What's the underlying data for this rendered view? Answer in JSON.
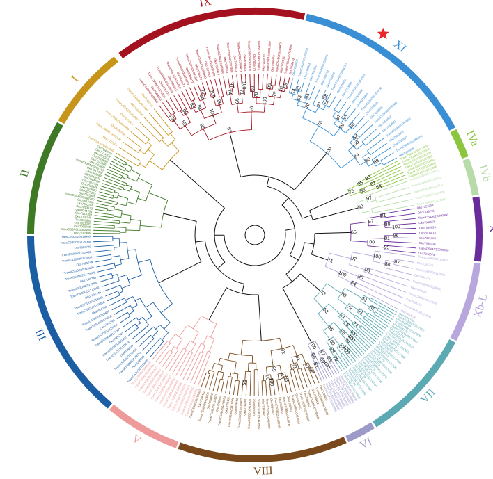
{
  "figure": {
    "marker_icon": "star-icon",
    "marker_color": "#e8282b"
  },
  "clades": [
    {
      "id": "IX",
      "label": "IX",
      "color": "#a3121e",
      "leaf_count": 32,
      "sample_leaves": [
        "TraesCS4B02G259900",
        "Oko7004813",
        "TraesCS5A02G331800",
        "Oko7036473"
      ]
    },
    {
      "id": "XI",
      "label": "XI",
      "color": "#3a8fd4",
      "leaf_count": 24,
      "sample_leaves": [
        "Oko7033890",
        "TraesCS2A02G356500",
        "Oko7000958"
      ],
      "marked": true
    },
    {
      "id": "IVa",
      "label": "IVa",
      "color": "#8cc63f",
      "leaf_count": 7,
      "sample_leaves": [
        "TraesCS1D02G212000"
      ]
    },
    {
      "id": "IVb",
      "label": "IVb",
      "color": "#b7dcaa",
      "leaf_count": 5,
      "sample_leaves": [
        "TraesCS4D02G219800"
      ]
    },
    {
      "id": "X",
      "label": "X",
      "color": "#6a2c9a",
      "leaf_count": 10,
      "sample_leaves": [
        "Oko7021309",
        "Oko7038716",
        "TraesCS4A02G290300",
        "Oko7042575",
        "Oko7010023",
        "Oko7006816"
      ]
    },
    {
      "id": "Xb-L",
      "label": "Xb-L",
      "color": "#b8a7dd",
      "leaf_count": 10,
      "sample_leaves": [
        "TraesCS6B02G110800",
        "Oko7034216"
      ]
    },
    {
      "id": "VII",
      "label": "VII",
      "color": "#5aa9b3",
      "leaf_count": 30,
      "sample_leaves": [
        "Oko7018779",
        "TraesCS5D02G137900"
      ]
    },
    {
      "id": "VI",
      "label": "VI",
      "color": "#9e9ac8",
      "leaf_count": 8,
      "sample_leaves": [
        "TraesCS1A02G288800"
      ]
    },
    {
      "id": "VIII",
      "label": "VIII",
      "color": "#7a4a1c",
      "leaf_count": 30,
      "sample_leaves": [
        "Oko7038462",
        "TraesCS3B02G418900"
      ]
    },
    {
      "id": "V",
      "label": "V",
      "color": "#ee9a9a",
      "leaf_count": 14,
      "sample_leaves": [
        "TraesCS5B02G099300"
      ]
    },
    {
      "id": "III",
      "label": "III",
      "color": "#1b5ea4",
      "leaf_count": 28,
      "sample_leaves": [
        "TraesCS2D02G319400",
        "Oko7006749",
        "TraesCS3D02G175000"
      ]
    },
    {
      "id": "II",
      "label": "II",
      "color": "#3e7a25",
      "leaf_count": 28,
      "sample_leaves": [
        "Oko7012406",
        "TraesCS5A02G082100",
        "Oko7005898",
        "Oko7023305",
        "Oko7028850",
        "Oko7010345",
        "Oko7014799",
        "Oko7044768",
        "Oko7013673",
        "Oko7001168"
      ]
    },
    {
      "id": "I",
      "label": "I",
      "color": "#c8951b",
      "leaf_count": 10,
      "sample_leaves": [
        "TraesCS4A02G051000",
        "Oko7022304"
      ]
    }
  ],
  "bootstrap_values": [
    "100",
    "98",
    "85",
    "88",
    "72",
    "64",
    "91",
    "100",
    "96",
    "100",
    "93",
    "97",
    "74",
    "100",
    "71",
    "99",
    "65",
    "78",
    "86",
    "89",
    "61",
    "79",
    "100",
    "94",
    "57",
    "82",
    "74",
    "94",
    "55",
    "58",
    "74",
    "97",
    "70",
    "93",
    "87",
    "68",
    "99",
    "76",
    "54",
    "100",
    "98",
    "83",
    "84",
    "100",
    "93",
    "95",
    "61",
    "84",
    "88",
    "75",
    "97",
    "90",
    "81",
    "100",
    "88",
    "57",
    "96",
    "81",
    "95",
    "100",
    "65",
    "87",
    "88",
    "100",
    "98",
    "97",
    "80",
    "64",
    "100",
    "71",
    "61",
    "51",
    "91",
    "79",
    "90",
    "74",
    "100",
    "78",
    "91",
    "100",
    "94",
    "95",
    "77",
    "100",
    "55",
    "79",
    "99",
    "100",
    "85",
    "53",
    "73",
    "93",
    "100",
    "69",
    "97",
    "52",
    "60",
    "100",
    "98",
    "67",
    "71",
    "81",
    "88",
    "63",
    "100",
    "90",
    "99",
    "92",
    "54"
  ]
}
